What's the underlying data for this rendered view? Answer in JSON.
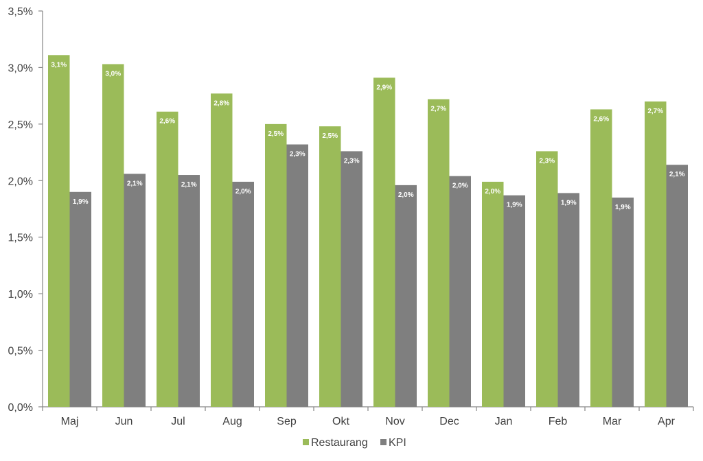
{
  "chart_data": {
    "type": "bar",
    "categories": [
      "Maj",
      "Jun",
      "Jul",
      "Aug",
      "Sep",
      "Okt",
      "Nov",
      "Dec",
      "Jan",
      "Feb",
      "Mar",
      "Apr"
    ],
    "series": [
      {
        "name": "Restaurang",
        "color": "#9bbb59",
        "values": [
          3.11,
          3.03,
          2.61,
          2.77,
          2.5,
          2.48,
          2.91,
          2.72,
          1.99,
          2.26,
          2.63,
          2.7
        ],
        "labels": [
          "3,1%",
          "3,0%",
          "2,6%",
          "2,8%",
          "2,5%",
          "2,5%",
          "2,9%",
          "2,7%",
          "2,0%",
          "2,3%",
          "2,6%",
          "2,7%"
        ]
      },
      {
        "name": "KPI",
        "color": "#7f7f7f",
        "values": [
          1.9,
          2.06,
          2.05,
          1.99,
          2.32,
          2.26,
          1.96,
          2.04,
          1.87,
          1.89,
          1.85,
          2.14
        ],
        "labels": [
          "1,9%",
          "2,1%",
          "2,1%",
          "2,0%",
          "2,3%",
          "2,3%",
          "2,0%",
          "2,0%",
          "1,9%",
          "1,9%",
          "1,9%",
          "2,1%"
        ]
      }
    ],
    "yticks": [
      "0,0%",
      "0,5%",
      "1,0%",
      "1,5%",
      "2,0%",
      "2,5%",
      "3,0%",
      "3,5%"
    ],
    "ylim": [
      0,
      3.5
    ],
    "grid": false,
    "legend_position": "bottom"
  }
}
